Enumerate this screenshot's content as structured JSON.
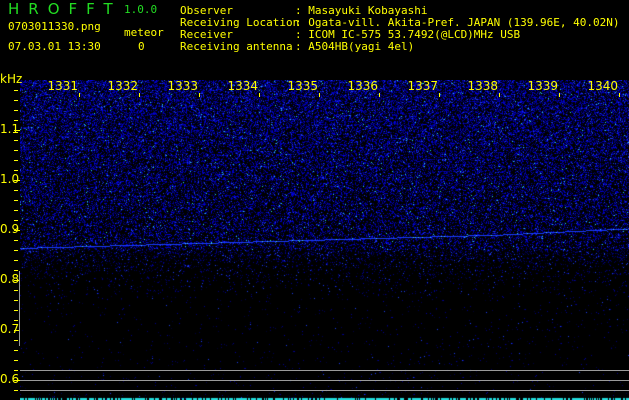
{
  "header": {
    "app_name": "HROFFT",
    "version": "1.0.0",
    "filename": "0703011330.png",
    "datetime": "07.03.01 13:30",
    "counter_label": "meteor",
    "counter_value": "0",
    "info": [
      {
        "label": "Observer",
        "value": ": Masayuki Kobayashi"
      },
      {
        "label": "Receiving Location",
        "value": ": Ogata-vill. Akita-Pref. JAPAN (139.96E, 40.02N)"
      },
      {
        "label": "Receiver",
        "value": ": ICOM IC-575 53.7492(@LCD)MHz USB"
      },
      {
        "label": "Receiving antenna",
        "value": ": A504HB(yagi 4el)"
      }
    ]
  },
  "spectrogram": {
    "y_unit": "kHz",
    "y_labels": [
      "1.1",
      "1.0",
      "0.9",
      "0.8",
      "0.7",
      "0.6"
    ],
    "x_labels": [
      "1331",
      "1332",
      "1333",
      "1334",
      "1335",
      "1336",
      "1337",
      "1338",
      "1339",
      "1340"
    ],
    "colors": {
      "text": "#ffff00",
      "title": "#22dd22",
      "signal": "#1a2cff",
      "peak": "#22ddee"
    }
  }
}
